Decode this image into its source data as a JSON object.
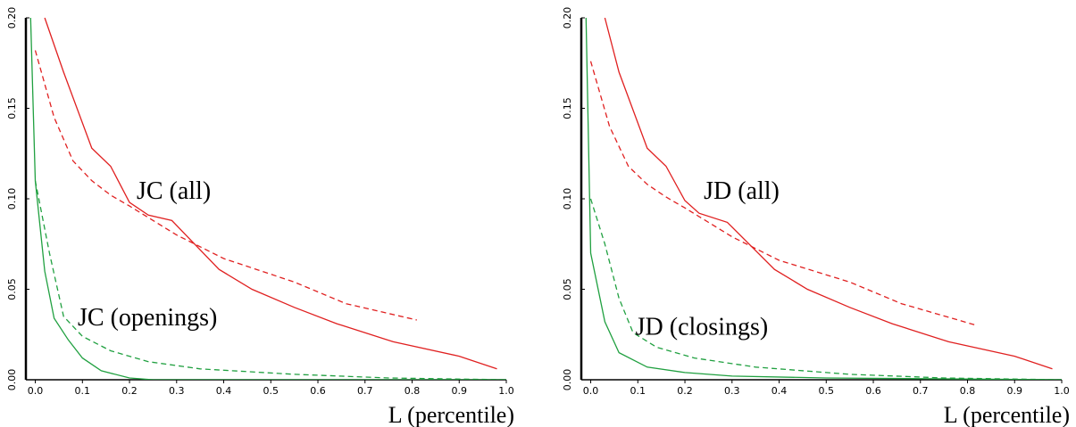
{
  "chart_data": [
    {
      "type": "line",
      "xlabel": "L (percentile)",
      "ylabel": "",
      "xlim": [
        -0.02,
        1.0
      ],
      "ylim": [
        0,
        0.2
      ],
      "x_ticks": [
        "0.0",
        "0.1",
        "0.2",
        "0.3",
        "0.4",
        "0.5",
        "0.6",
        "0.7",
        "0.8",
        "0.9",
        "1.0"
      ],
      "y_ticks": [
        "0.00",
        "0.05",
        "0.10",
        "0.15",
        "0.20"
      ],
      "annotations": [
        {
          "text": "JC (all)",
          "x": 0.215,
          "y": 0.1
        },
        {
          "text": "JC (openings)",
          "x": 0.09,
          "y": 0.03
        }
      ],
      "colors": {
        "all": "#e02020",
        "subset": "#20a040"
      },
      "series": [
        {
          "style": "solid",
          "color": "#e02020",
          "x": [
            0.02,
            0.06,
            0.12,
            0.16,
            0.2,
            0.24,
            0.29,
            0.39,
            0.46,
            0.55,
            0.64,
            0.76,
            0.9,
            0.98
          ],
          "y": [
            0.2,
            0.17,
            0.128,
            0.118,
            0.098,
            0.091,
            0.088,
            0.061,
            0.05,
            0.04,
            0.031,
            0.021,
            0.013,
            0.006
          ]
        },
        {
          "style": "dashed",
          "color": "#e02020",
          "x": [
            0.0,
            0.04,
            0.08,
            0.12,
            0.16,
            0.2,
            0.3,
            0.4,
            0.55,
            0.66,
            0.81
          ],
          "y": [
            0.182,
            0.145,
            0.121,
            0.11,
            0.102,
            0.096,
            0.08,
            0.067,
            0.054,
            0.042,
            0.033
          ]
        },
        {
          "style": "solid",
          "color": "#20a040",
          "x": [
            -0.01,
            0.0,
            0.02,
            0.04,
            0.07,
            0.1,
            0.14,
            0.2,
            0.25,
            0.5,
            1.0
          ],
          "y": [
            0.2,
            0.11,
            0.06,
            0.034,
            0.022,
            0.012,
            0.005,
            0.001,
            0.0,
            0.0,
            0.0
          ]
        },
        {
          "style": "dashed",
          "color": "#20a040",
          "x": [
            0.0,
            0.03,
            0.06,
            0.1,
            0.16,
            0.24,
            0.35,
            0.55,
            0.75,
            1.0
          ],
          "y": [
            0.11,
            0.07,
            0.035,
            0.024,
            0.016,
            0.01,
            0.006,
            0.003,
            0.001,
            0.0
          ]
        }
      ]
    },
    {
      "type": "line",
      "xlabel": "L (percentile)",
      "ylabel": "",
      "xlim": [
        -0.02,
        1.0
      ],
      "ylim": [
        0,
        0.2
      ],
      "x_ticks": [
        "0.0",
        "0.1",
        "0.2",
        "0.3",
        "0.4",
        "0.5",
        "0.6",
        "0.7",
        "0.8",
        "0.9",
        "1.0"
      ],
      "y_ticks": [
        "0.00",
        "0.05",
        "0.10",
        "0.15",
        "0.20"
      ],
      "annotations": [
        {
          "text": "JD (all)",
          "x": 0.24,
          "y": 0.1
        },
        {
          "text": "JD (closings)",
          "x": 0.095,
          "y": 0.025
        }
      ],
      "colors": {
        "all": "#e02020",
        "subset": "#20a040"
      },
      "series": [
        {
          "style": "solid",
          "color": "#e02020",
          "x": [
            0.03,
            0.06,
            0.12,
            0.16,
            0.2,
            0.23,
            0.29,
            0.39,
            0.46,
            0.55,
            0.64,
            0.76,
            0.9,
            0.98
          ],
          "y": [
            0.2,
            0.17,
            0.128,
            0.118,
            0.099,
            0.092,
            0.087,
            0.061,
            0.05,
            0.04,
            0.031,
            0.021,
            0.013,
            0.006
          ]
        },
        {
          "style": "dashed",
          "color": "#e02020",
          "x": [
            0.0,
            0.04,
            0.08,
            0.12,
            0.16,
            0.2,
            0.3,
            0.4,
            0.55,
            0.66,
            0.82
          ],
          "y": [
            0.176,
            0.14,
            0.118,
            0.108,
            0.101,
            0.095,
            0.079,
            0.066,
            0.054,
            0.042,
            0.03
          ]
        },
        {
          "style": "solid",
          "color": "#20a040",
          "x": [
            -0.01,
            0.0,
            0.03,
            0.06,
            0.12,
            0.2,
            0.3,
            0.5,
            1.0
          ],
          "y": [
            0.2,
            0.07,
            0.032,
            0.015,
            0.007,
            0.004,
            0.002,
            0.001,
            0.0
          ]
        },
        {
          "style": "dashed",
          "color": "#20a040",
          "x": [
            0.0,
            0.03,
            0.06,
            0.09,
            0.14,
            0.22,
            0.35,
            0.55,
            0.75,
            1.0
          ],
          "y": [
            0.1,
            0.075,
            0.045,
            0.026,
            0.018,
            0.012,
            0.007,
            0.003,
            0.001,
            0.0
          ]
        }
      ]
    }
  ]
}
